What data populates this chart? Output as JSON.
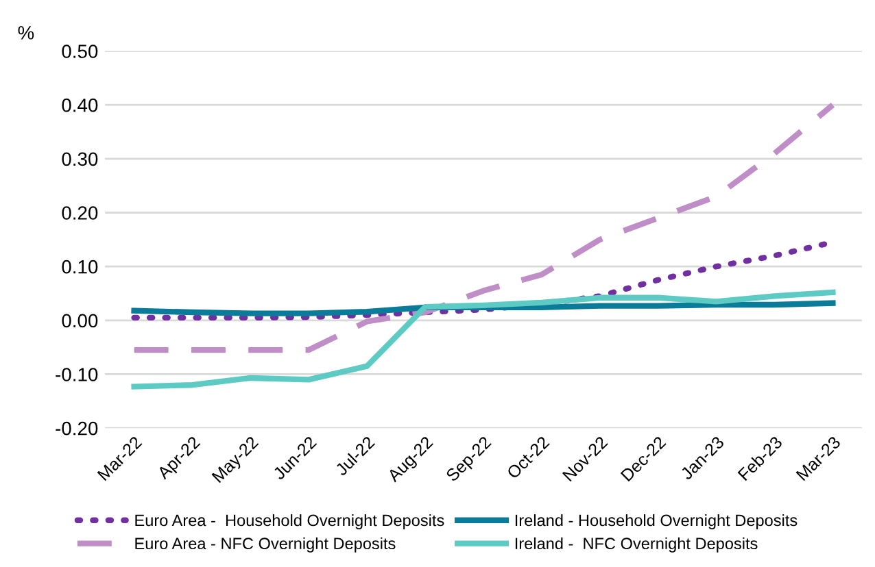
{
  "chart_data": {
    "type": "line",
    "ylabel": "%",
    "categories": [
      "Mar-22",
      "Apr-22",
      "May-22",
      "Jun-22",
      "Jul-22",
      "Aug-22",
      "Sep-22",
      "Oct-22",
      "Nov-22",
      "Dec-22",
      "Jan-23",
      "Feb-23",
      "Mar-23"
    ],
    "series": [
      {
        "name": "Euro Area -  Household Overnight Deposits",
        "color": "#7030a0",
        "line_style": "dotted",
        "values": [
          0.005,
          0.005,
          0.005,
          0.006,
          0.01,
          0.015,
          0.02,
          0.03,
          0.045,
          0.075,
          0.1,
          0.12,
          0.145
        ]
      },
      {
        "name": "Euro Area - NFC Overnight Deposits",
        "color": "#c08ec6",
        "line_style": "dashed",
        "values": [
          -0.055,
          -0.055,
          -0.055,
          -0.055,
          -0.002,
          0.015,
          0.055,
          0.085,
          0.15,
          0.19,
          0.23,
          0.31,
          0.4
        ]
      },
      {
        "name": "Ireland - Household Overnight Deposits",
        "color": "#0a7b98",
        "line_style": "solid",
        "values": [
          0.018,
          0.015,
          0.013,
          0.013,
          0.016,
          0.024,
          0.024,
          0.024,
          0.027,
          0.027,
          0.029,
          0.029,
          0.032
        ]
      },
      {
        "name": "Ireland -  NFC Overnight Deposits",
        "color": "#5ecac4",
        "line_style": "solid",
        "values": [
          -0.123,
          -0.12,
          -0.107,
          -0.11,
          -0.085,
          0.025,
          0.028,
          0.033,
          0.042,
          0.042,
          0.035,
          0.045,
          0.052
        ]
      }
    ],
    "ylim": [
      -0.2,
      0.5
    ],
    "yticks": [
      {
        "value": -0.2,
        "label": "-0.20"
      },
      {
        "value": -0.1,
        "label": "-0.10"
      },
      {
        "value": 0,
        "label": "0.00"
      },
      {
        "value": 0.1,
        "label": "0.10"
      },
      {
        "value": 0.2,
        "label": "0.20"
      },
      {
        "value": 0.3,
        "label": "0.30"
      },
      {
        "value": 0.4,
        "label": "0.40"
      },
      {
        "value": 0.5,
        "label": "0.50"
      }
    ],
    "grid": "y",
    "legend": "bottom",
    "marker": "none"
  }
}
